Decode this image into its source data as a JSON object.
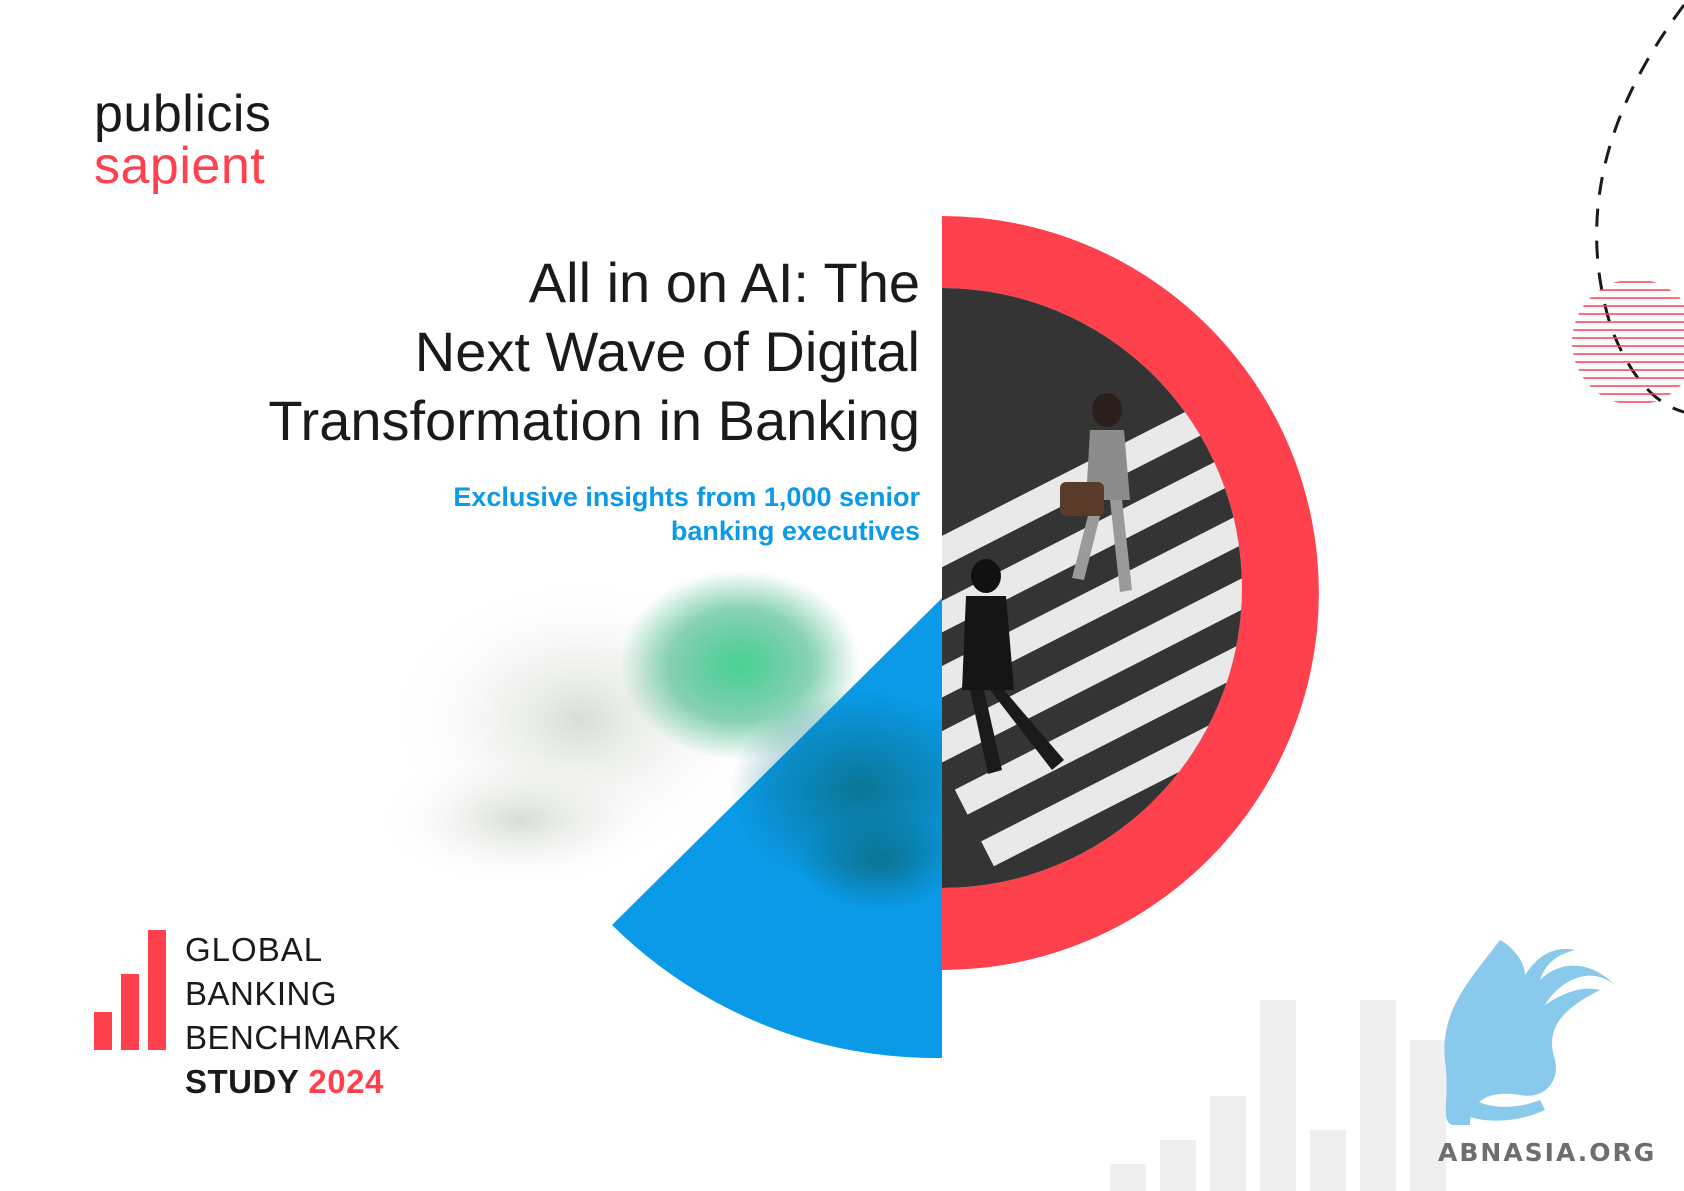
{
  "brand": {
    "line1": "publicis",
    "line2": "sapient"
  },
  "title": {
    "lines": [
      "All in on AI: The",
      "Next Wave of Digital",
      "Transformation in Banking"
    ]
  },
  "subtitle": {
    "lines": [
      "Exclusive insights from 1,000 senior",
      "banking executives"
    ]
  },
  "badge": {
    "line1": "GLOBAL",
    "line2": "BANKING",
    "line3": "BENCHMARK",
    "line4_word": "STUDY",
    "line4_year": "2024"
  },
  "watermark": {
    "text": "ABNASIA.ORG"
  },
  "colors": {
    "accent_red": "#fe414d",
    "accent_blue": "#0a9ae8",
    "text_dark": "#1a1a1a"
  }
}
